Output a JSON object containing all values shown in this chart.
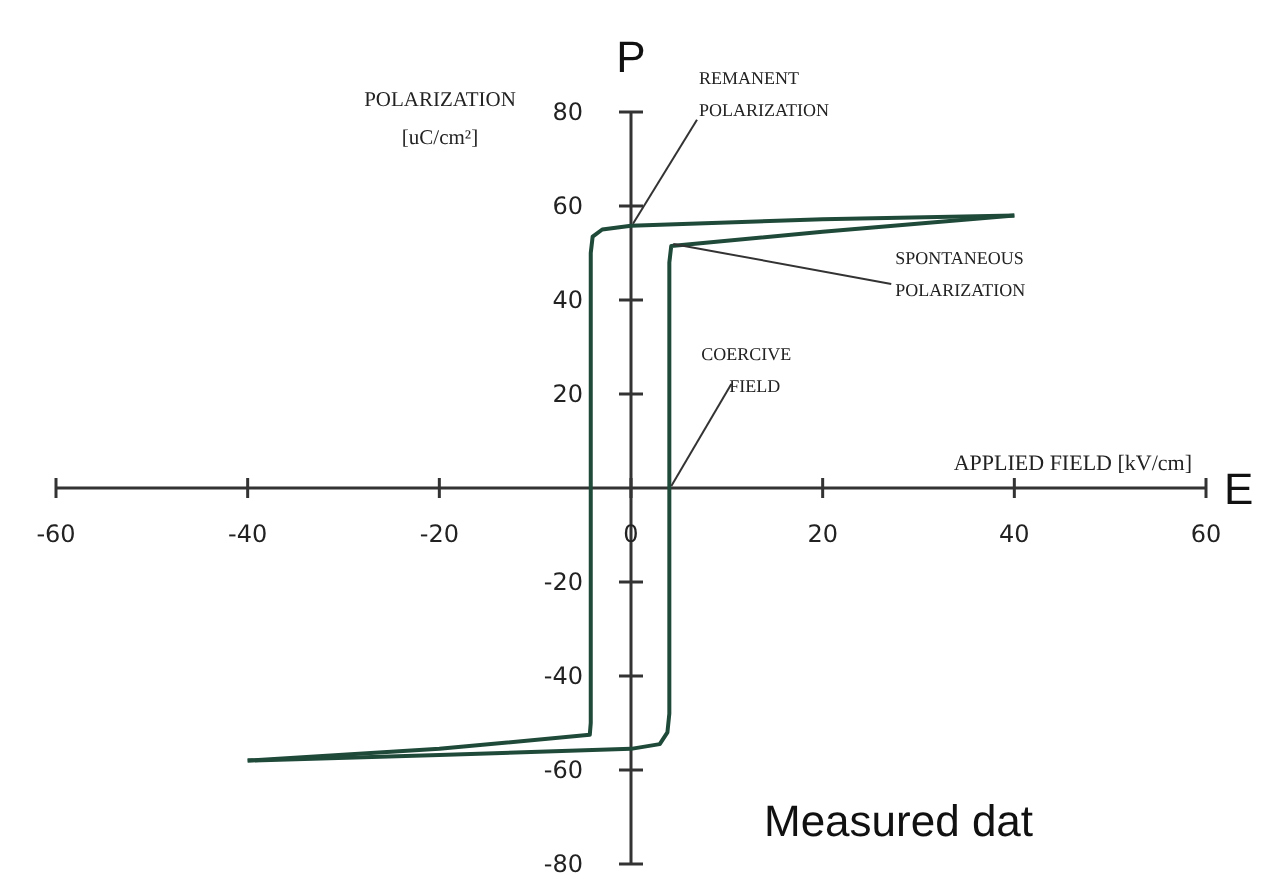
{
  "chart_data": {
    "type": "line",
    "xlabel": "APPLIED FIELD [kV/cm]",
    "ylabel": "POLARIZATION [uC/cm²]",
    "xlim": [
      -60,
      60
    ],
    "ylim": [
      -80,
      80
    ],
    "xticks": [
      -60,
      -40,
      -20,
      0,
      20,
      40,
      60
    ],
    "yticks": [
      -80,
      -60,
      -40,
      -20,
      20,
      40,
      60,
      80
    ],
    "grid": false,
    "marker": "none",
    "line_style": "solid",
    "series": [
      {
        "color": "#1f4a3a",
        "x": [
          40,
          20,
          0,
          -3,
          -4,
          -4.2,
          -4.2,
          -4.3,
          -20,
          -40
        ],
        "values": [
          58,
          57.2,
          55.8,
          55,
          53.5,
          50,
          -50,
          -52.5,
          -55.5,
          -58
        ]
      },
      {
        "color": "#1f4a3a",
        "x": [
          -40,
          -20,
          0,
          3,
          3.8,
          4,
          4,
          4,
          4.2,
          20,
          40
        ],
        "values": [
          -58,
          -56.8,
          -55.5,
          -54.5,
          -52,
          -48,
          0,
          48,
          51.5,
          54.5,
          58
        ]
      }
    ],
    "annotations": [
      "P",
      "E",
      "Measured dat",
      {
        "text": "REMANENT POLARIZATION",
        "x": 0,
        "y": 55.8
      },
      {
        "text": "SPONTANEOUS POLARIZATION",
        "x": 4.2,
        "y": 51.5
      },
      {
        "text": "COERCIVE FIELD",
        "x": 4,
        "y": 0
      }
    ]
  }
}
